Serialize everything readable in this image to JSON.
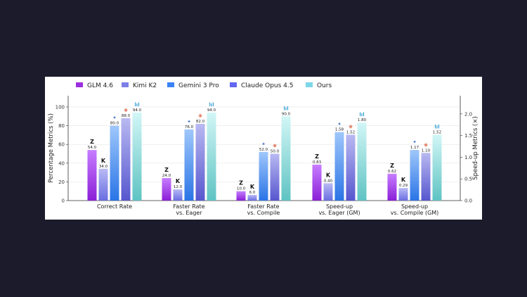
{
  "chart_data": {
    "type": "bar",
    "categories": [
      "Correct Rate",
      "Faster Rate\nvs. Eager",
      "Faster Rate\nvs. Compile",
      "Speed-up\nvs. Eager (GM)",
      "Speed-up\nvs. Compile (GM)"
    ],
    "category_axis": [
      "left",
      "left",
      "left",
      "right",
      "right"
    ],
    "series": [
      {
        "name": "GLM 4.6",
        "color": "#9b30e0",
        "icon": "zhipu-z-logo",
        "values": [
          54.0,
          24.0,
          10.0,
          0.83,
          0.62
        ],
        "labels": [
          "54.0",
          "24.0",
          "10.0",
          "0.83",
          "0.62"
        ]
      },
      {
        "name": "Kimi K2",
        "color": "#7b7fe8",
        "icon": "kimi-k-logo",
        "values": [
          34.0,
          12.0,
          6.0,
          0.4,
          0.29
        ],
        "labels": [
          "34.0",
          "12.0",
          "6.0",
          "0.40",
          "0.29"
        ]
      },
      {
        "name": "Gemini 3 Pro",
        "color": "#3b82f6",
        "icon": "gemini-sparkle",
        "values": [
          80.0,
          76.0,
          52.0,
          1.58,
          1.17
        ],
        "labels": [
          "80.0",
          "76.0",
          "52.0",
          "1.58",
          "1.17"
        ]
      },
      {
        "name": "Claude Opus 4.5",
        "color": "#6366f1",
        "icon": "claude-asterisk",
        "values": [
          88.0,
          82.0,
          50.0,
          1.52,
          1.1
        ],
        "labels": [
          "88.0",
          "82.0",
          "50.0",
          "1.52",
          "1.10"
        ]
      },
      {
        "name": "Ours",
        "color": "#7dd8e8",
        "icon": "bar-chart-logo",
        "values": [
          94.0,
          94.0,
          90.0,
          1.8,
          1.52
        ],
        "labels": [
          "94.0",
          "94.0",
          "90.0",
          "1.80",
          "1.52"
        ]
      }
    ],
    "ylabel": "Percentage Metrics (%)",
    "ylabel_right": "Speed-up Metrics (×)",
    "ylim": [
      0,
      112
    ],
    "ylim_right": [
      0,
      2.42
    ],
    "yticks": [
      "0",
      "20",
      "40",
      "60",
      "80",
      "100"
    ],
    "yticks_right": [
      "0.0",
      "0.5",
      "1.0",
      "1.5",
      "2.0"
    ],
    "grid": true,
    "legend": "top"
  }
}
